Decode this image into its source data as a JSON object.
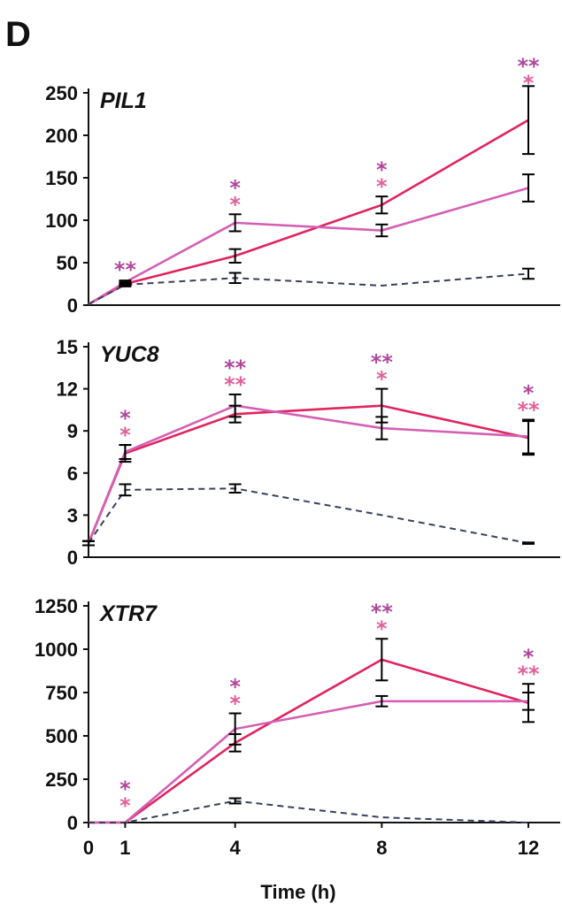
{
  "panel_label": "D",
  "colors": {
    "dark_pink": "#e0245e",
    "light_pink": "#d45fb4",
    "dashed": "#3a3f5c",
    "star_dark": "#b0479c",
    "star_light": "#e0609a",
    "axis": "#111111"
  },
  "chart_data": [
    {
      "type": "line",
      "title": "PIL1",
      "xlabel": "Time (h)",
      "ylabel": "",
      "x": [
        0,
        1,
        4,
        8,
        12
      ],
      "xticks": [
        "0",
        "1",
        "4",
        "8",
        "12"
      ],
      "yticks": [
        "0",
        "50",
        "100",
        "150",
        "200",
        "250"
      ],
      "ylim": [
        0,
        250
      ],
      "series": [
        {
          "color": "#e0245e",
          "style": "solid",
          "values": [
            1,
            25,
            58,
            118,
            218
          ],
          "errors": [
            0,
            2,
            8,
            10,
            40
          ]
        },
        {
          "color": "#d45fb4",
          "style": "solid",
          "values": [
            1,
            27,
            97,
            88,
            138
          ],
          "errors": [
            0,
            2,
            10,
            7,
            16
          ]
        },
        {
          "color": "#3a3f5c",
          "style": "dashed",
          "values": [
            1,
            24,
            32,
            23,
            37
          ],
          "errors": [
            0,
            2,
            6,
            0,
            6
          ]
        }
      ],
      "annotations": [
        {
          "x": 1,
          "stars": [
            "**"
          ]
        },
        {
          "x": 4,
          "stars": [
            "*",
            "*"
          ]
        },
        {
          "x": 8,
          "stars": [
            "*",
            "*"
          ]
        },
        {
          "x": 12,
          "stars": [
            "**",
            "*"
          ]
        }
      ]
    },
    {
      "type": "line",
      "title": "YUC8",
      "xlabel": "Time (h)",
      "ylabel": "",
      "x": [
        0,
        1,
        4,
        8,
        12
      ],
      "xticks": [
        "0",
        "1",
        "4",
        "8",
        "12"
      ],
      "yticks": [
        "0",
        "3",
        "6",
        "9",
        "12",
        "15"
      ],
      "ylim": [
        0,
        15
      ],
      "series": [
        {
          "color": "#e0245e",
          "style": "solid",
          "values": [
            1,
            7.4,
            10.2,
            10.8,
            8.5
          ],
          "errors": [
            0.15,
            0.6,
            0.6,
            1.2,
            1.2
          ]
        },
        {
          "color": "#d45fb4",
          "style": "solid",
          "values": [
            1,
            7.5,
            10.8,
            9.2,
            8.6
          ],
          "errors": [
            0.15,
            0.5,
            0.8,
            0.8,
            1.2
          ]
        },
        {
          "color": "#3a3f5c",
          "style": "dashed",
          "values": [
            1,
            4.8,
            4.9,
            3.0,
            1.0
          ],
          "errors": [
            0.15,
            0.4,
            0.3,
            0,
            0.05
          ]
        }
      ],
      "annotations": [
        {
          "x": 1,
          "stars": [
            "*",
            "*"
          ]
        },
        {
          "x": 4,
          "stars": [
            "**",
            "**"
          ]
        },
        {
          "x": 8,
          "stars": [
            "**",
            "*"
          ]
        },
        {
          "x": 12,
          "stars": [
            "*",
            "**"
          ]
        }
      ]
    },
    {
      "type": "line",
      "title": "XTR7",
      "xlabel": "Time (h)",
      "ylabel": "",
      "x": [
        0,
        1,
        4,
        8,
        12
      ],
      "xticks": [
        "0",
        "1",
        "4",
        "8",
        "12"
      ],
      "yticks": [
        "0",
        "250",
        "500",
        "750",
        "1000",
        "1250"
      ],
      "ylim": [
        0,
        1250
      ],
      "series": [
        {
          "color": "#e0245e",
          "style": "solid",
          "values": [
            0,
            0,
            460,
            940,
            690
          ],
          "errors": [
            0,
            0,
            50,
            120,
            110
          ]
        },
        {
          "color": "#d45fb4",
          "style": "solid",
          "values": [
            0,
            0,
            540,
            700,
            700
          ],
          "errors": [
            0,
            0,
            90,
            30,
            50
          ]
        },
        {
          "color": "#3a3f5c",
          "style": "dashed",
          "values": [
            0,
            0,
            125,
            30,
            0
          ],
          "errors": [
            0,
            0,
            15,
            0,
            0
          ]
        }
      ],
      "annotations": [
        {
          "x": 1,
          "stars": [
            "*",
            "*"
          ]
        },
        {
          "x": 4,
          "stars": [
            "*",
            "*"
          ]
        },
        {
          "x": 8,
          "stars": [
            "**",
            "*"
          ]
        },
        {
          "x": 12,
          "stars": [
            "*",
            "**"
          ]
        }
      ]
    }
  ]
}
